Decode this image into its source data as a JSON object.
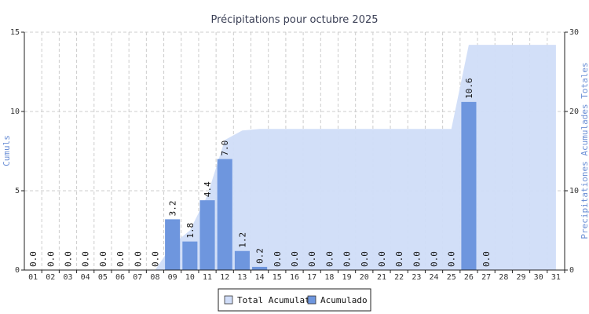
{
  "chart_data": {
    "type": "bar",
    "title": "Précipitations pour octubre 2025",
    "ylabel": "Cumuls",
    "y2label": "Precipitationes Acumulades Totales",
    "ylim": [
      0,
      15
    ],
    "y2lim": [
      0,
      30
    ],
    "yticks": [
      "0",
      "5",
      "10",
      "15"
    ],
    "y2ticks": [
      "0",
      "10",
      "20",
      "30"
    ],
    "grid": true,
    "legend_position": "bottom-center",
    "categories": [
      "01",
      "02",
      "03",
      "04",
      "05",
      "06",
      "07",
      "08",
      "09",
      "10",
      "11",
      "12",
      "13",
      "14",
      "15",
      "16",
      "17",
      "18",
      "19",
      "20",
      "21",
      "22",
      "23",
      "24",
      "25",
      "26",
      "27",
      "28",
      "29",
      "30",
      "31"
    ],
    "bar_labels": [
      "0.0",
      "0.0",
      "0.0",
      "0.0",
      "0.0",
      "0.0",
      "0.0",
      "0.0",
      "3.2",
      "1.8",
      "4.4",
      "7.0",
      "1.2",
      "0.2",
      "0.0",
      "0.0",
      "0.0",
      "0.0",
      "0.0",
      "0.0",
      "0.0",
      "0.0",
      "0.0",
      "0.0",
      "0.0",
      "10.6",
      "0.0"
    ],
    "series": [
      {
        "name": "Total Acumulat",
        "type": "area",
        "axis": "right",
        "color": "#d0ddf8",
        "values": [
          0,
          0,
          0,
          0,
          0,
          0,
          0,
          0,
          3.2,
          5.0,
          9.4,
          16.4,
          17.6,
          17.8,
          17.8,
          17.8,
          17.8,
          17.8,
          17.8,
          17.8,
          17.8,
          17.8,
          17.8,
          17.8,
          17.8,
          28.4,
          28.4,
          28.4,
          28.4,
          28.4,
          28.4
        ]
      },
      {
        "name": "Acumulado",
        "type": "bar",
        "axis": "left",
        "color": "#6e96de",
        "values": [
          0,
          0,
          0,
          0,
          0,
          0,
          0,
          0,
          3.2,
          1.8,
          4.4,
          7.0,
          1.2,
          0.2,
          0,
          0,
          0,
          0,
          0,
          0,
          0,
          0,
          0,
          0,
          0,
          10.6,
          0,
          null,
          null,
          null,
          null
        ]
      }
    ]
  }
}
